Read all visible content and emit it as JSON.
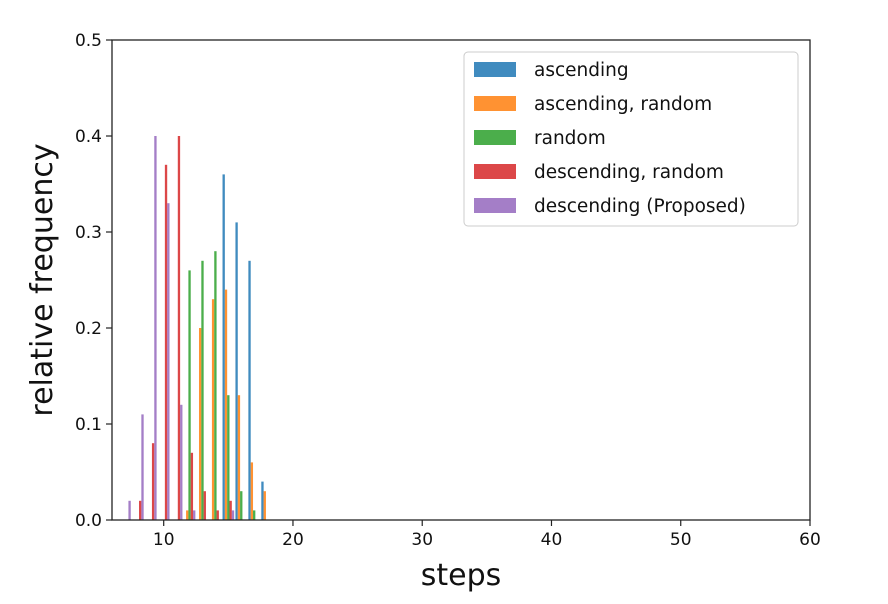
{
  "chart_data": {
    "type": "bar",
    "title": "",
    "xlabel": "steps",
    "ylabel": "relative frequency",
    "xlim": [
      6,
      60
    ],
    "ylim": [
      0,
      0.5
    ],
    "xticks": [
      10,
      20,
      30,
      40,
      50,
      60
    ],
    "yticks": [
      0.0,
      0.1,
      0.2,
      0.3,
      0.4,
      0.5
    ],
    "xtick_labels": [
      "10",
      "20",
      "30",
      "40",
      "50",
      "60"
    ],
    "ytick_labels": [
      "0.0",
      "0.1",
      "0.2",
      "0.3",
      "0.4",
      "0.5"
    ],
    "grid": false,
    "legend_position": "top-right",
    "bar_width_steps": 0.9,
    "series": [
      {
        "name": "ascending",
        "color": "#1f77b4",
        "points": [
          {
            "x": 15,
            "y": 0.36
          },
          {
            "x": 16,
            "y": 0.31
          },
          {
            "x": 17,
            "y": 0.27
          },
          {
            "x": 18,
            "y": 0.04
          }
        ]
      },
      {
        "name": "ascending, random",
        "color": "#ff7f0e",
        "points": [
          {
            "x": 12,
            "y": 0.01
          },
          {
            "x": 13,
            "y": 0.2
          },
          {
            "x": 14,
            "y": 0.23
          },
          {
            "x": 15,
            "y": 0.24
          },
          {
            "x": 16,
            "y": 0.13
          },
          {
            "x": 17,
            "y": 0.06
          },
          {
            "x": 18,
            "y": 0.03
          }
        ]
      },
      {
        "name": "random",
        "color": "#2ca02c",
        "points": [
          {
            "x": 12,
            "y": 0.26
          },
          {
            "x": 13,
            "y": 0.27
          },
          {
            "x": 14,
            "y": 0.28
          },
          {
            "x": 15,
            "y": 0.13
          },
          {
            "x": 16,
            "y": 0.03
          },
          {
            "x": 17,
            "y": 0.01
          }
        ]
      },
      {
        "name": "descending, random",
        "color": "#d62728",
        "points": [
          {
            "x": 8,
            "y": 0.02
          },
          {
            "x": 9,
            "y": 0.08
          },
          {
            "x": 10,
            "y": 0.37
          },
          {
            "x": 11,
            "y": 0.4
          },
          {
            "x": 12,
            "y": 0.07
          },
          {
            "x": 13,
            "y": 0.03
          },
          {
            "x": 14,
            "y": 0.01
          },
          {
            "x": 15,
            "y": 0.02
          }
        ]
      },
      {
        "name": "descending (Proposed)",
        "color": "#9467bd",
        "points": [
          {
            "x": 7,
            "y": 0.02
          },
          {
            "x": 8,
            "y": 0.11
          },
          {
            "x": 9,
            "y": 0.4
          },
          {
            "x": 10,
            "y": 0.33
          },
          {
            "x": 11,
            "y": 0.12
          },
          {
            "x": 12,
            "y": 0.01
          },
          {
            "x": 15,
            "y": 0.01
          }
        ]
      }
    ]
  }
}
